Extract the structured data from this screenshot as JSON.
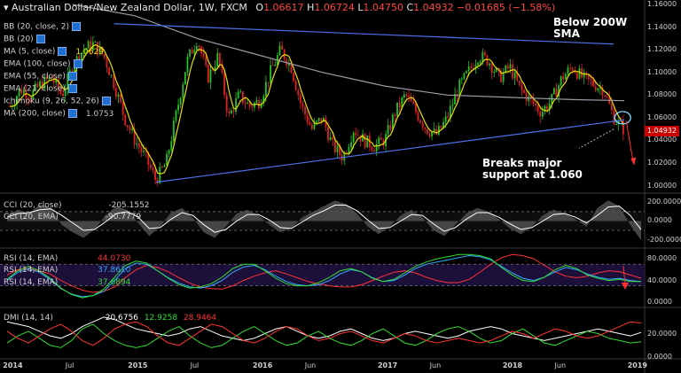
{
  "header": {
    "arrow": "▾",
    "symbol": "Australian Dollar/New Zealand Dollar, 1W, FXCM",
    "o_label": "O",
    "o": "1.06617",
    "h_label": "H",
    "h": "1.06724",
    "l_label": "L",
    "l": "1.04750",
    "c_label": "C",
    "c": "1.04932",
    "chg": "−0.01685 (−1.58%)"
  },
  "indicators": [
    {
      "label": "BB (20, close, 2)",
      "value": ""
    },
    {
      "label": "BB (20)",
      "value": ""
    },
    {
      "label": "MA (5, close)",
      "value": "1.0629"
    },
    {
      "label": "EMA (100, close)",
      "value": ""
    },
    {
      "label": "EMA (55, close)",
      "value": ""
    },
    {
      "label": "EMA (21, close)",
      "value": ""
    },
    {
      "label": "Ichimoku (9, 26, 52, 26)",
      "value": ""
    },
    {
      "label": "MA (200, close)",
      "value": "1.0753"
    }
  ],
  "annotations": {
    "below_200w_line1": "Below 200W",
    "below_200w_line2": "SMA",
    "breaks_line1": "Breaks major",
    "breaks_line2": "support at 1.060"
  },
  "panes": {
    "cci": [
      {
        "label": "CCI (20, close)",
        "value": "-205.1552"
      },
      {
        "label": "CCI (20, EMA)",
        "value": "-90.7779"
      }
    ],
    "rsi": [
      {
        "label": "RSI (14, EMA)",
        "value": "44.0730",
        "color": "#ff3333"
      },
      {
        "label": "RSI (14, EMA)",
        "value": "37.8610",
        "color": "#33aaff"
      },
      {
        "label": "RSI (14, EMA)",
        "value": "37.6894",
        "color": "#33dd33"
      }
    ],
    "dmi": {
      "label": "DMI (14, 14)",
      "v1": "20.6756",
      "v2": "12.9258",
      "v3": "28.9464",
      "c1": "#ffffff",
      "c2": "#33dd33",
      "c3": "#ff3333"
    }
  },
  "price_tag": "1.04932",
  "colors": {
    "up": "#22c422",
    "down": "#e02020",
    "ma5": "#e8e000",
    "ma200": "#9a9aa8",
    "trendline": "#4f6fe8",
    "rsi_band": "#1c0f3a",
    "cci_fill": "#555555"
  },
  "chart_data": [
    {
      "type": "candlestick",
      "title": "Australian Dollar/New Zealand Dollar, 1W, FXCM",
      "ylim": [
        0.995,
        1.16
      ],
      "y_ticks": [
        "1.16000",
        "1.14000",
        "1.12000",
        "1.10000",
        "1.08000",
        "1.06000",
        "1.04000",
        "1.02000",
        "1.00000"
      ],
      "x_ticks": [
        "2014",
        "Jul",
        "2015",
        "Jul",
        "2016",
        "Jun",
        "2017",
        "Jun",
        "2018",
        "Jun",
        "2019"
      ],
      "close_path": [
        [
          "2014-01",
          1.07
        ],
        [
          "2014-02",
          1.085
        ],
        [
          "2014-03",
          1.08
        ],
        [
          "2014-04",
          1.09
        ],
        [
          "2014-05",
          1.095
        ],
        [
          "2014-06",
          1.08
        ],
        [
          "2014-07",
          1.105
        ],
        [
          "2014-08",
          1.12
        ],
        [
          "2014-09",
          1.125
        ],
        [
          "2014-10",
          1.115
        ],
        [
          "2014-11",
          1.09
        ],
        [
          "2014-12",
          1.06
        ],
        [
          "2015-01",
          1.04
        ],
        [
          "2015-02",
          1.025
        ],
        [
          "2015-03",
          1.005
        ],
        [
          "2015-04",
          1.02
        ],
        [
          "2015-05",
          1.065
        ],
        [
          "2015-06",
          1.11
        ],
        [
          "2015-07",
          1.13
        ],
        [
          "2015-08",
          1.095
        ],
        [
          "2015-09",
          1.115
        ],
        [
          "2015-10",
          1.06
        ],
        [
          "2015-11",
          1.08
        ],
        [
          "2015-12",
          1.07
        ],
        [
          "2016-01",
          1.075
        ],
        [
          "2016-02",
          1.1
        ],
        [
          "2016-03",
          1.12
        ],
        [
          "2016-04",
          1.105
        ],
        [
          "2016-05",
          1.07
        ],
        [
          "2016-06",
          1.05
        ],
        [
          "2016-07",
          1.06
        ],
        [
          "2016-08",
          1.035
        ],
        [
          "2016-09",
          1.025
        ],
        [
          "2016-10",
          1.05
        ],
        [
          "2016-11",
          1.04
        ],
        [
          "2016-12",
          1.035
        ],
        [
          "2017-01",
          1.04
        ],
        [
          "2017-02",
          1.065
        ],
        [
          "2017-03",
          1.08
        ],
        [
          "2017-04",
          1.065
        ],
        [
          "2017-05",
          1.05
        ],
        [
          "2017-06",
          1.045
        ],
        [
          "2017-07",
          1.06
        ],
        [
          "2017-08",
          1.085
        ],
        [
          "2017-09",
          1.1
        ],
        [
          "2017-10",
          1.115
        ],
        [
          "2017-11",
          1.11
        ],
        [
          "2017-12",
          1.095
        ],
        [
          "2018-01",
          1.105
        ],
        [
          "2018-02",
          1.085
        ],
        [
          "2018-03",
          1.075
        ],
        [
          "2018-04",
          1.065
        ],
        [
          "2018-05",
          1.075
        ],
        [
          "2018-06",
          1.095
        ],
        [
          "2018-07",
          1.105
        ],
        [
          "2018-08",
          1.095
        ],
        [
          "2018-09",
          1.09
        ],
        [
          "2018-10",
          1.085
        ],
        [
          "2018-11",
          1.06
        ],
        [
          "2018-12",
          1.049
        ]
      ],
      "ma200_path": [
        [
          "2014-07",
          1.17
        ],
        [
          "2015-01",
          1.15
        ],
        [
          "2015-07",
          1.13
        ],
        [
          "2016-01",
          1.115
        ],
        [
          "2016-07",
          1.1
        ],
        [
          "2017-01",
          1.088
        ],
        [
          "2017-07",
          1.08
        ],
        [
          "2018-01",
          1.078
        ],
        [
          "2018-07",
          1.076
        ],
        [
          "2018-12",
          1.075
        ]
      ],
      "trendlines": [
        {
          "from": [
            "2015-03",
            1.003
          ],
          "to": [
            "2018-12",
            1.058
          ]
        },
        {
          "from": [
            "2014-11",
            1.143
          ],
          "to": [
            "2018-11",
            1.125
          ]
        }
      ]
    },
    {
      "type": "line",
      "title": "CCI (20, close)",
      "ylim": [
        -270,
        260
      ],
      "y_ticks": [
        "200.0000",
        "0.0000",
        "-200.0000"
      ],
      "series": [
        {
          "name": "CCI (20, close)",
          "values": [
            60,
            120,
            80,
            180,
            140,
            -40,
            -120,
            -180,
            -90,
            60,
            160,
            120,
            -20,
            -160,
            -60,
            90,
            140,
            30,
            -120,
            -180,
            -60,
            80,
            120,
            60,
            -40,
            -120,
            -80,
            40,
            100,
            160,
            220,
            180,
            80,
            -60,
            -140,
            -60,
            60,
            120,
            40,
            -100,
            -160,
            -40,
            80,
            140,
            100,
            20,
            -80,
            -140,
            -60,
            60,
            120,
            80,
            20,
            -60,
            140,
            220,
            160,
            -40,
            -205
          ]
        },
        {
          "name": "CCI (20, EMA)",
          "values": [
            40,
            80,
            90,
            120,
            130,
            60,
            -20,
            -100,
            -90,
            -10,
            80,
            100,
            40,
            -80,
            -70,
            20,
            90,
            60,
            -40,
            -120,
            -90,
            0,
            70,
            70,
            10,
            -70,
            -80,
            -10,
            60,
            110,
            170,
            170,
            110,
            10,
            -80,
            -70,
            0,
            70,
            60,
            -30,
            -110,
            -70,
            20,
            90,
            90,
            40,
            -30,
            -90,
            -70,
            0,
            70,
            80,
            40,
            -20,
            60,
            150,
            160,
            60,
            -91
          ]
        }
      ]
    },
    {
      "type": "line",
      "title": "RSI (14, EMA)",
      "ylim": [
        -5,
        95
      ],
      "y_ticks": [
        "80.0000",
        "40.0000",
        "0.0000"
      ],
      "series": [
        {
          "name": "RSI (14, EMA)",
          "values": [
            50,
            60,
            62,
            58,
            52,
            40,
            30,
            22,
            18,
            20,
            28,
            45,
            60,
            68,
            64,
            56,
            45,
            35,
            28,
            25,
            24,
            30,
            40,
            48,
            54,
            58,
            52,
            45,
            38,
            34,
            30,
            28,
            28,
            32,
            40,
            48,
            55,
            58,
            54,
            46,
            40,
            36,
            36,
            42,
            55,
            70,
            82,
            88,
            86,
            80,
            68,
            56,
            48,
            45,
            48,
            54,
            58,
            56,
            50,
            44
          ]
        },
        {
          "name": "RSI (14, EMA)",
          "values": [
            40,
            55,
            62,
            55,
            42,
            25,
            15,
            10,
            12,
            20,
            40,
            62,
            72,
            70,
            58,
            45,
            35,
            28,
            26,
            30,
            40,
            55,
            65,
            68,
            60,
            48,
            38,
            32,
            30,
            32,
            40,
            52,
            60,
            56,
            45,
            38,
            40,
            50,
            62,
            70,
            74,
            78,
            82,
            86,
            84,
            78,
            66,
            54,
            44,
            40,
            46,
            56,
            64,
            60,
            52,
            46,
            42,
            44,
            40,
            38
          ]
        },
        {
          "name": "RSI (14, EMA)",
          "values": [
            42,
            58,
            66,
            58,
            44,
            26,
            14,
            8,
            12,
            24,
            46,
            68,
            76,
            72,
            58,
            44,
            32,
            26,
            28,
            34,
            46,
            62,
            70,
            70,
            58,
            44,
            34,
            30,
            30,
            36,
            46,
            58,
            62,
            56,
            44,
            38,
            42,
            54,
            66,
            74,
            80,
            84,
            88,
            88,
            86,
            80,
            64,
            50,
            40,
            38,
            46,
            60,
            68,
            62,
            50,
            44,
            40,
            42,
            38,
            38
          ]
        }
      ]
    },
    {
      "type": "line",
      "title": "DMI (14, 14)",
      "ylim": [
        0,
        40
      ],
      "y_ticks": [
        "20.0000",
        "0.0000"
      ],
      "series": [
        {
          "name": "DMI (14, 14)",
          "values": [
            30,
            28,
            26,
            22,
            18,
            16,
            20,
            26,
            30,
            34,
            32,
            28,
            24,
            22,
            20,
            18,
            20,
            24,
            26,
            22,
            18,
            16,
            14,
            16,
            20,
            24,
            26,
            22,
            18,
            16,
            18,
            22,
            24,
            20,
            16,
            14,
            16,
            20,
            22,
            20,
            18,
            16,
            18,
            22,
            24,
            26,
            24,
            20,
            18,
            16,
            14,
            16,
            18,
            20,
            22,
            24,
            22,
            20,
            18,
            21
          ]
        },
        {
          "name": "DMI (14, 14)",
          "values": [
            12,
            18,
            22,
            16,
            10,
            8,
            14,
            24,
            28,
            20,
            14,
            10,
            8,
            10,
            16,
            22,
            26,
            18,
            12,
            8,
            10,
            16,
            22,
            26,
            20,
            14,
            10,
            12,
            18,
            22,
            16,
            12,
            10,
            14,
            20,
            24,
            18,
            12,
            10,
            14,
            20,
            24,
            26,
            22,
            16,
            12,
            14,
            20,
            24,
            18,
            12,
            10,
            14,
            18,
            22,
            20,
            16,
            14,
            12,
            13
          ]
        },
        {
          "name": "DMI (14, 14)",
          "values": [
            22,
            16,
            12,
            18,
            24,
            28,
            22,
            14,
            10,
            16,
            24,
            28,
            30,
            26,
            18,
            12,
            10,
            16,
            22,
            28,
            26,
            20,
            14,
            12,
            16,
            22,
            26,
            24,
            18,
            14,
            16,
            20,
            22,
            18,
            14,
            12,
            16,
            20,
            18,
            14,
            12,
            14,
            16,
            14,
            12,
            14,
            18,
            22,
            20,
            16,
            20,
            24,
            22,
            18,
            16,
            18,
            22,
            26,
            30,
            29
          ]
        }
      ]
    }
  ]
}
